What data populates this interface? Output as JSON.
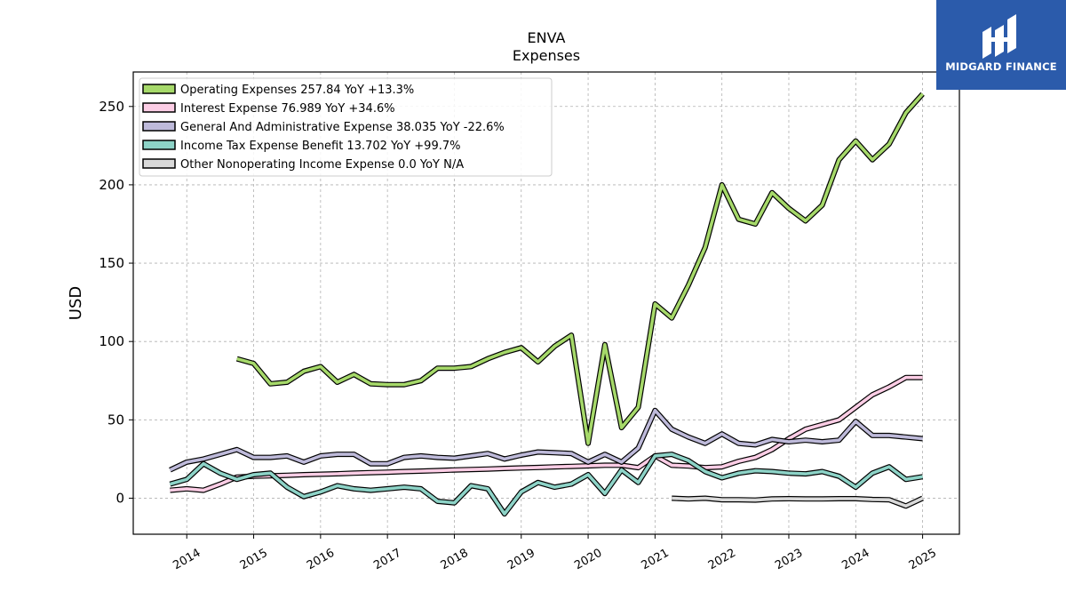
{
  "brand": {
    "name": "MIDGARD FINANCE",
    "logo_color": "#2b5bab"
  },
  "chart_data": {
    "type": "line",
    "title": "ENVA",
    "subtitle": "Expenses",
    "ylabel": "USD",
    "xlabel": "",
    "xlim": [
      2013.2,
      2025.55
    ],
    "ylim": [
      -23,
      272
    ],
    "x_ticks": [
      2014,
      2015,
      2016,
      2017,
      2018,
      2019,
      2020,
      2021,
      2022,
      2023,
      2024,
      2025
    ],
    "y_ticks": [
      0,
      50,
      100,
      150,
      200,
      250
    ],
    "grid": true,
    "legend_position": "top-left",
    "series": [
      {
        "name": "Operating Expenses",
        "legend_label": "Operating Expenses  257.84 YoY +13.3%",
        "color": "#a6d96a",
        "points": [
          [
            2014.75,
            89
          ],
          [
            2015.0,
            86
          ],
          [
            2015.25,
            73
          ],
          [
            2015.5,
            74
          ],
          [
            2015.75,
            81
          ],
          [
            2016.0,
            84
          ],
          [
            2016.25,
            74
          ],
          [
            2016.5,
            79
          ],
          [
            2016.75,
            73
          ],
          [
            2017.0,
            72.5
          ],
          [
            2017.25,
            72.5
          ],
          [
            2017.5,
            75
          ],
          [
            2017.75,
            83
          ],
          [
            2018.0,
            83
          ],
          [
            2018.25,
            84
          ],
          [
            2018.5,
            89
          ],
          [
            2018.75,
            93
          ],
          [
            2019.0,
            96
          ],
          [
            2019.25,
            87
          ],
          [
            2019.5,
            97
          ],
          [
            2019.75,
            104
          ],
          [
            2020.0,
            35
          ],
          [
            2020.25,
            98
          ],
          [
            2020.5,
            45
          ],
          [
            2020.75,
            58
          ],
          [
            2021.0,
            124
          ],
          [
            2021.25,
            115
          ],
          [
            2021.5,
            136
          ],
          [
            2021.75,
            160
          ],
          [
            2022.0,
            200
          ],
          [
            2022.25,
            178
          ],
          [
            2022.5,
            175
          ],
          [
            2022.75,
            195
          ],
          [
            2023.0,
            185
          ],
          [
            2023.25,
            177
          ],
          [
            2023.5,
            187
          ],
          [
            2023.75,
            216
          ],
          [
            2024.0,
            228
          ],
          [
            2024.25,
            216
          ],
          [
            2024.5,
            226
          ],
          [
            2024.75,
            246
          ],
          [
            2025.0,
            258
          ]
        ]
      },
      {
        "name": "Interest Expense",
        "legend_label": "Interest Expense  76.989 YoY +34.6%",
        "color": "#fccde5",
        "points": [
          [
            2013.75,
            5
          ],
          [
            2014.0,
            6
          ],
          [
            2014.25,
            5
          ],
          [
            2014.5,
            9
          ],
          [
            2014.75,
            13.5
          ],
          [
            2015.0,
            14
          ],
          [
            2015.25,
            14.3
          ],
          [
            2015.5,
            14.6
          ],
          [
            2015.75,
            15
          ],
          [
            2016.0,
            15.3
          ],
          [
            2016.25,
            15.6
          ],
          [
            2016.5,
            16
          ],
          [
            2016.75,
            16.3
          ],
          [
            2017.0,
            16.6
          ],
          [
            2017.25,
            17
          ],
          [
            2017.5,
            17.3
          ],
          [
            2017.75,
            17.6
          ],
          [
            2018.0,
            18
          ],
          [
            2018.25,
            18.3
          ],
          [
            2018.5,
            18.6
          ],
          [
            2018.75,
            19
          ],
          [
            2019.0,
            19.3
          ],
          [
            2019.25,
            19.6
          ],
          [
            2019.5,
            20
          ],
          [
            2019.75,
            20.3
          ],
          [
            2020.0,
            20.6
          ],
          [
            2020.25,
            21
          ],
          [
            2020.5,
            21
          ],
          [
            2020.75,
            19.5
          ],
          [
            2021.0,
            27
          ],
          [
            2021.25,
            21
          ],
          [
            2021.5,
            20.5
          ],
          [
            2021.75,
            19.5
          ],
          [
            2022.0,
            20
          ],
          [
            2022.25,
            23.5
          ],
          [
            2022.5,
            26
          ],
          [
            2022.75,
            31
          ],
          [
            2023.0,
            38
          ],
          [
            2023.25,
            44
          ],
          [
            2023.5,
            47
          ],
          [
            2023.75,
            50
          ],
          [
            2024.0,
            58
          ],
          [
            2024.25,
            66
          ],
          [
            2024.5,
            71
          ],
          [
            2024.75,
            77
          ],
          [
            2025.0,
            77
          ]
        ]
      },
      {
        "name": "General And Administrative Expense",
        "legend_label": "General And Administrative Expense  38.035 YoY -22.6%",
        "color": "#bebada",
        "points": [
          [
            2013.75,
            18
          ],
          [
            2014.0,
            23
          ],
          [
            2014.25,
            25
          ],
          [
            2014.5,
            28
          ],
          [
            2014.75,
            31
          ],
          [
            2015.0,
            26
          ],
          [
            2015.25,
            26
          ],
          [
            2015.5,
            27
          ],
          [
            2015.75,
            23
          ],
          [
            2016.0,
            27
          ],
          [
            2016.25,
            28
          ],
          [
            2016.5,
            28
          ],
          [
            2016.75,
            22
          ],
          [
            2017.0,
            22
          ],
          [
            2017.25,
            26
          ],
          [
            2017.5,
            27
          ],
          [
            2017.75,
            26
          ],
          [
            2018.0,
            25.5
          ],
          [
            2018.25,
            27
          ],
          [
            2018.5,
            28.5
          ],
          [
            2018.75,
            25
          ],
          [
            2019.0,
            27.5
          ],
          [
            2019.25,
            29.5
          ],
          [
            2019.5,
            29
          ],
          [
            2019.75,
            28.5
          ],
          [
            2020.0,
            23
          ],
          [
            2020.25,
            28
          ],
          [
            2020.5,
            23
          ],
          [
            2020.75,
            32
          ],
          [
            2021.0,
            56
          ],
          [
            2021.25,
            44
          ],
          [
            2021.5,
            39
          ],
          [
            2021.75,
            35
          ],
          [
            2022.0,
            41
          ],
          [
            2022.25,
            35
          ],
          [
            2022.5,
            34
          ],
          [
            2022.75,
            37.5
          ],
          [
            2023.0,
            36
          ],
          [
            2023.25,
            37
          ],
          [
            2023.5,
            36
          ],
          [
            2023.75,
            37
          ],
          [
            2024.0,
            49
          ],
          [
            2024.25,
            40
          ],
          [
            2024.5,
            40
          ],
          [
            2024.75,
            39
          ],
          [
            2025.0,
            38
          ]
        ]
      },
      {
        "name": "Income Tax Expense Benefit",
        "legend_label": "Income Tax Expense Benefit  13.702 YoY +99.7%",
        "color": "#8dd3c7",
        "points": [
          [
            2013.75,
            9
          ],
          [
            2014.0,
            12
          ],
          [
            2014.25,
            22
          ],
          [
            2014.5,
            16
          ],
          [
            2014.75,
            12
          ],
          [
            2015.0,
            15
          ],
          [
            2015.25,
            16
          ],
          [
            2015.5,
            7
          ],
          [
            2015.75,
            1
          ],
          [
            2016.0,
            4
          ],
          [
            2016.25,
            8
          ],
          [
            2016.5,
            6
          ],
          [
            2016.75,
            5
          ],
          [
            2017.0,
            6
          ],
          [
            2017.25,
            7
          ],
          [
            2017.5,
            6
          ],
          [
            2017.75,
            -2
          ],
          [
            2018.0,
            -3
          ],
          [
            2018.25,
            8
          ],
          [
            2018.5,
            6
          ],
          [
            2018.75,
            -10
          ],
          [
            2019.0,
            4
          ],
          [
            2019.25,
            10
          ],
          [
            2019.5,
            7
          ],
          [
            2019.75,
            9
          ],
          [
            2020.0,
            15
          ],
          [
            2020.25,
            3
          ],
          [
            2020.5,
            18
          ],
          [
            2020.75,
            10
          ],
          [
            2021.0,
            27
          ],
          [
            2021.25,
            28
          ],
          [
            2021.5,
            24
          ],
          [
            2021.75,
            17
          ],
          [
            2022.0,
            13
          ],
          [
            2022.25,
            16
          ],
          [
            2022.5,
            17.5
          ],
          [
            2022.75,
            17
          ],
          [
            2023.0,
            16
          ],
          [
            2023.25,
            15.5
          ],
          [
            2023.5,
            17
          ],
          [
            2023.75,
            14
          ],
          [
            2024.0,
            7
          ],
          [
            2024.25,
            16
          ],
          [
            2024.5,
            20
          ],
          [
            2024.75,
            12
          ],
          [
            2025.0,
            13.7
          ]
        ]
      },
      {
        "name": "Other Nonoperating Income Expense",
        "legend_label": "Other Nonoperating Income Expense  0.0 YoY N/A",
        "color": "#d9d9d9",
        "points": [
          [
            2021.25,
            0
          ],
          [
            2021.5,
            -0.5
          ],
          [
            2021.75,
            0
          ],
          [
            2022.0,
            -1
          ],
          [
            2022.25,
            -1
          ],
          [
            2022.5,
            -1.2
          ],
          [
            2022.75,
            -0.5
          ],
          [
            2023.0,
            -0.3
          ],
          [
            2023.25,
            -0.5
          ],
          [
            2023.5,
            -0.5
          ],
          [
            2023.75,
            -0.3
          ],
          [
            2024.0,
            -0.3
          ],
          [
            2024.25,
            -0.8
          ],
          [
            2024.5,
            -1
          ],
          [
            2024.75,
            -5
          ],
          [
            2025.0,
            0
          ]
        ]
      }
    ]
  }
}
